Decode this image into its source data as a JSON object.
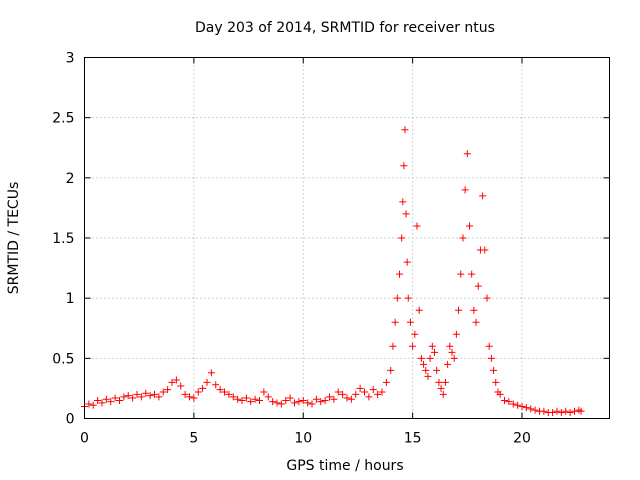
{
  "chart_data": {
    "type": "scatter",
    "title": "Day 203 of 2014, SRMTID for receiver ntus",
    "xlabel": "GPS time / hours",
    "ylabel": "SRMTID / TECUs",
    "xlim": [
      0,
      24
    ],
    "ylim": [
      0,
      3
    ],
    "xticks": [
      0,
      5,
      10,
      15,
      20
    ],
    "xtick_labels": [
      "0",
      "5",
      "10",
      "15",
      "20"
    ],
    "yticks": [
      0,
      0.5,
      1,
      1.5,
      2,
      2.5,
      3
    ],
    "ytick_labels": [
      "0",
      "0.5",
      "1",
      "1.5",
      "2",
      "2.5",
      "3"
    ],
    "grid": true,
    "marker": "+",
    "color": "#ff0000",
    "series": [
      {
        "name": "SRMTID",
        "x": [
          0.0,
          0.2,
          0.4,
          0.6,
          0.8,
          1.0,
          1.2,
          1.4,
          1.6,
          1.8,
          2.0,
          2.2,
          2.4,
          2.6,
          2.8,
          3.0,
          3.2,
          3.4,
          3.6,
          3.8,
          4.0,
          4.2,
          4.4,
          4.6,
          4.8,
          5.0,
          5.2,
          5.4,
          5.6,
          5.8,
          6.0,
          6.2,
          6.4,
          6.6,
          6.8,
          7.0,
          7.2,
          7.4,
          7.6,
          7.8,
          8.0,
          8.2,
          8.4,
          8.6,
          8.8,
          9.0,
          9.2,
          9.4,
          9.6,
          9.8,
          10.0,
          10.2,
          10.4,
          10.6,
          10.8,
          11.0,
          11.2,
          11.4,
          11.6,
          11.8,
          12.0,
          12.2,
          12.4,
          12.6,
          12.8,
          13.0,
          13.2,
          13.4,
          13.6,
          13.8,
          14.0,
          14.1,
          14.2,
          14.3,
          14.4,
          14.5,
          14.55,
          14.6,
          14.65,
          14.7,
          14.75,
          14.8,
          14.9,
          15.0,
          15.1,
          15.2,
          15.3,
          15.4,
          15.5,
          15.6,
          15.7,
          15.8,
          15.9,
          16.0,
          16.1,
          16.2,
          16.3,
          16.4,
          16.5,
          16.6,
          16.7,
          16.8,
          16.9,
          17.0,
          17.1,
          17.2,
          17.3,
          17.4,
          17.5,
          17.6,
          17.7,
          17.8,
          17.9,
          18.0,
          18.1,
          18.2,
          18.3,
          18.4,
          18.5,
          18.6,
          18.7,
          18.8,
          18.9,
          19.0,
          19.2,
          19.4,
          19.6,
          19.8,
          20.0,
          20.2,
          20.4,
          20.6,
          20.8,
          21.0,
          21.2,
          21.4,
          21.6,
          21.8,
          22.0,
          22.2,
          22.4,
          22.6,
          22.7
        ],
        "y": [
          0.1,
          0.12,
          0.11,
          0.15,
          0.13,
          0.16,
          0.14,
          0.17,
          0.15,
          0.18,
          0.19,
          0.17,
          0.2,
          0.18,
          0.21,
          0.19,
          0.2,
          0.18,
          0.22,
          0.24,
          0.3,
          0.32,
          0.27,
          0.2,
          0.18,
          0.17,
          0.22,
          0.25,
          0.3,
          0.38,
          0.28,
          0.24,
          0.22,
          0.2,
          0.18,
          0.16,
          0.15,
          0.17,
          0.14,
          0.16,
          0.15,
          0.22,
          0.18,
          0.14,
          0.13,
          0.12,
          0.15,
          0.17,
          0.13,
          0.14,
          0.15,
          0.13,
          0.12,
          0.16,
          0.14,
          0.15,
          0.18,
          0.16,
          0.22,
          0.2,
          0.17,
          0.16,
          0.2,
          0.25,
          0.22,
          0.18,
          0.24,
          0.2,
          0.22,
          0.3,
          0.4,
          0.6,
          0.8,
          1.0,
          1.2,
          1.5,
          1.8,
          2.1,
          2.4,
          1.7,
          1.3,
          1.0,
          0.8,
          0.6,
          0.7,
          1.6,
          0.9,
          0.5,
          0.45,
          0.4,
          0.35,
          0.5,
          0.6,
          0.55,
          0.4,
          0.3,
          0.25,
          0.2,
          0.3,
          0.45,
          0.6,
          0.55,
          0.5,
          0.7,
          0.9,
          1.2,
          1.5,
          1.9,
          2.2,
          1.6,
          1.2,
          0.9,
          0.8,
          1.1,
          1.4,
          1.85,
          1.4,
          1.0,
          0.6,
          0.5,
          0.4,
          0.3,
          0.22,
          0.2,
          0.15,
          0.14,
          0.12,
          0.11,
          0.1,
          0.09,
          0.08,
          0.07,
          0.06,
          0.06,
          0.05,
          0.05,
          0.06,
          0.05,
          0.06,
          0.05,
          0.06,
          0.07,
          0.06
        ]
      }
    ]
  }
}
